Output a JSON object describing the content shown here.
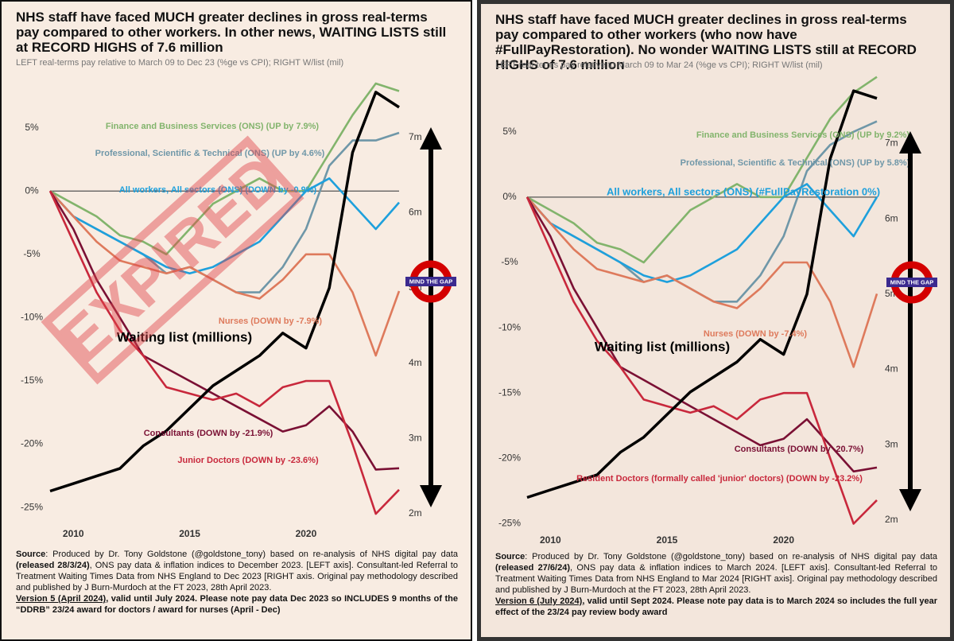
{
  "chart_data": [
    {
      "type": "line",
      "title": "NHS staff have faced MUCH greater declines in gross real-terms pay compared to other workers. In other news, WAITING LISTS still at RECORD HIGHS of 7.6 million",
      "subtitle": "LEFT real-terms pay relative to March 09 to Dec 23 (%ge vs CPI); RIGHT W/list (mil)",
      "stamp": "EXPIRED",
      "roundel": "MIND THE GAP",
      "x": [
        2009,
        2010,
        2011,
        2012,
        2013,
        2014,
        2015,
        2016,
        2017,
        2018,
        2019,
        2020,
        2021,
        2022,
        2023,
        2024
      ],
      "xlim": [
        2009,
        2024
      ],
      "xticks": [
        2010,
        2015,
        2020
      ],
      "ylim": [
        -26.5,
        9
      ],
      "yticks": [
        {
          "value": 5,
          "label": "5%"
        },
        {
          "value": 0,
          "label": "0%"
        },
        {
          "value": -5,
          "label": "-5%"
        },
        {
          "value": -10,
          "label": "-10%"
        },
        {
          "value": -15,
          "label": "-15%"
        },
        {
          "value": -20,
          "label": "-20%"
        },
        {
          "value": -25,
          "label": "-25%"
        }
      ],
      "y2lim": [
        1.83,
        7.8
      ],
      "y2ticks": [
        {
          "value": 7,
          "label": "7m"
        },
        {
          "value": 6,
          "label": "6m"
        },
        {
          "value": 5,
          "label": "5m"
        },
        {
          "value": 4,
          "label": "4m"
        },
        {
          "value": 3,
          "label": "3m"
        },
        {
          "value": 2,
          "label": "2m"
        }
      ],
      "series": [
        {
          "name": "Finance and Business Services (ONS) (UP by 7.9%)",
          "color": "#82b46c",
          "values": [
            0,
            -1,
            -2,
            -3.5,
            -4,
            -5,
            -3,
            -1,
            0,
            1,
            0,
            0,
            3,
            6,
            8.5,
            7.9
          ]
        },
        {
          "name": "Professional, Scientific & Technical (ONS) (UP by 4.6%)",
          "color": "#6f97a8",
          "values": [
            0,
            -2,
            -3,
            -4,
            -5,
            -6.5,
            -6,
            -7,
            -8,
            -8,
            -6,
            -3,
            2,
            4,
            4,
            4.6
          ]
        },
        {
          "name": "All workers, All sectors (ONS) (DOWN by -0.9%)",
          "color": "#1ea0dc",
          "values": [
            0,
            -2,
            -3,
            -4,
            -5,
            -6,
            -6.5,
            -6,
            -5,
            -4,
            -2,
            0,
            1,
            -1,
            -3,
            -0.9
          ]
        },
        {
          "name": "Nurses (DOWN by -7.9%)",
          "color": "#de7a5c",
          "values": [
            0,
            -2,
            -4,
            -5.5,
            -6,
            -6.5,
            -6,
            -7,
            -8,
            -8.5,
            -7,
            -5,
            -5,
            -8,
            -13,
            -7.9
          ]
        },
        {
          "name": "Consultants (DOWN by -21.9%)",
          "color": "#7a1034",
          "values": [
            0,
            -3,
            -7,
            -10,
            -13,
            -14,
            -15,
            -16,
            -17,
            -18,
            -19,
            -18.5,
            -17,
            -19,
            -22,
            -21.9
          ]
        },
        {
          "name": "Junior Doctors (DOWN by -23.6%)",
          "color": "#c8283c",
          "values": [
            0,
            -4,
            -8,
            -11,
            -13,
            -15.5,
            -16,
            -16.5,
            -16,
            -17,
            -15.5,
            -15,
            -15,
            -20,
            -25.5,
            -23.6
          ]
        },
        {
          "name": "Waiting list (millions)",
          "color": "#000000",
          "axis": "y2",
          "values": [
            2.3,
            2.4,
            2.5,
            2.6,
            2.9,
            3.1,
            3.4,
            3.7,
            3.9,
            4.1,
            4.4,
            4.2,
            5.0,
            6.8,
            7.6,
            7.4
          ]
        }
      ],
      "source": [
        "Source",
        ": Produced by Dr. Tony Goldstone (@goldstone_tony) based on re-analysis of NHS digital pay data ",
        "(released 28/3/24)",
        ", ONS pay data & inflation indices to December 2023. [LEFT axis]. Consultant-led Referral to Treatment Waiting Times Data from NHS England to Dec 2023 [RIGHT axis. Original pay methodology described and published by J Burn-Murdoch at the FT 2023, 28th April 2023."
      ],
      "version": [
        "Version 5 (April 2024)",
        ", valid until July 2024. Please note pay data Dec 2023 so INCLUDES 9 months of the “DDRB” 23/24 award for doctors / award for nurses (April - Dec)"
      ]
    },
    {
      "type": "line",
      "title": "NHS staff have faced MUCH greater declines in gross real-terms pay compared to other workers (who now have #FullPayRestoration). No wonder WAITING LISTS still at RECORD HIGHS of 7.6 million",
      "subtitle": "LEFT real-terms pay relative to March 09 to Mar 24 (%ge vs CPI); RIGHT W/list (mil)",
      "roundel": "MIND THE GAP",
      "x": [
        2009,
        2010,
        2011,
        2012,
        2013,
        2014,
        2015,
        2016,
        2017,
        2018,
        2019,
        2020,
        2021,
        2022,
        2023,
        2024
      ],
      "xlim": [
        2009,
        2024
      ],
      "xticks": [
        2010,
        2015,
        2020
      ],
      "ylim": [
        -25.7,
        9
      ],
      "yticks": [
        {
          "value": 5,
          "label": "5%"
        },
        {
          "value": 0,
          "label": "0%"
        },
        {
          "value": -5,
          "label": "-5%"
        },
        {
          "value": -10,
          "label": "-10%"
        },
        {
          "value": -15,
          "label": "-15%"
        },
        {
          "value": -20,
          "label": "-20%"
        },
        {
          "value": -25,
          "label": "-25%"
        }
      ],
      "y2lim": [
        1.83,
        7.85
      ],
      "y2ticks": [
        {
          "value": 7,
          "label": "7m"
        },
        {
          "value": 6,
          "label": "6m"
        },
        {
          "value": 5,
          "label": "5m"
        },
        {
          "value": 4,
          "label": "4m"
        },
        {
          "value": 3,
          "label": "3m"
        },
        {
          "value": 2,
          "label": "2m"
        }
      ],
      "series": [
        {
          "name": "Finance and Business Services (ONS) (UP by 9.2%)",
          "color": "#82b46c",
          "values": [
            0,
            -1,
            -2,
            -3.5,
            -4,
            -5,
            -3,
            -1,
            0,
            1,
            0,
            0,
            3,
            6,
            8,
            9.2
          ]
        },
        {
          "name": "Professional, Scientific & Technical (ONS) (UP by 5.8%)",
          "color": "#6f97a8",
          "values": [
            0,
            -2,
            -3,
            -4,
            -5,
            -6.5,
            -6,
            -7,
            -8,
            -8,
            -6,
            -3,
            2,
            4,
            5,
            5.8
          ]
        },
        {
          "name": "All workers, All sectors (ONS) (#FullPayRestoration 0%)",
          "color": "#1ea0dc",
          "values": [
            0,
            -2,
            -3,
            -4,
            -5,
            -6,
            -6.5,
            -6,
            -5,
            -4,
            -2,
            0,
            1,
            -1,
            -3,
            0
          ]
        },
        {
          "name": "Nurses (DOWN by -7.4%)",
          "color": "#de7a5c",
          "values": [
            0,
            -2,
            -4,
            -5.5,
            -6,
            -6.5,
            -6,
            -7,
            -8,
            -8.5,
            -7,
            -5,
            -5,
            -8,
            -13,
            -7.4
          ]
        },
        {
          "name": "Consultants (DOWN by -20.7%)",
          "color": "#7a1034",
          "values": [
            0,
            -3,
            -7,
            -10,
            -13,
            -14,
            -15,
            -16,
            -17,
            -18,
            -19,
            -18.5,
            -17,
            -19,
            -21,
            -20.7
          ]
        },
        {
          "name": "Resident Doctors (formally called 'junior' doctors) (DOWN by -23.2%)",
          "color": "#c8283c",
          "values": [
            0,
            -4,
            -8,
            -11,
            -13,
            -15.5,
            -16,
            -16.5,
            -16,
            -17,
            -15.5,
            -15,
            -15,
            -20,
            -25,
            -23.2
          ]
        },
        {
          "name": "Waiting list (millions)",
          "color": "#000000",
          "axis": "y2",
          "values": [
            2.3,
            2.4,
            2.5,
            2.6,
            2.9,
            3.1,
            3.4,
            3.7,
            3.9,
            4.1,
            4.4,
            4.2,
            5.0,
            6.8,
            7.7,
            7.6
          ]
        }
      ],
      "source": [
        "Source",
        ": Produced by Dr. Tony Goldstone (@goldstone_tony) based on re-analysis of NHS digital pay data ",
        "(released 27/6/24)",
        ", ONS pay data & inflation indices to March 2024. [LEFT axis]. Consultant-led Referral to Treatment Waiting Times Data from NHS England to Mar 2024 [RIGHT axis]. Original pay methodology described and published by J Burn-Murdoch at the FT 2023, 28th April 2023."
      ],
      "version": [
        "Version 6 (July 2024)",
        ", valid until Sept 2024. Please note pay data is to March 2024 so includes the full year effect of the 23/24 pay review body award"
      ]
    }
  ]
}
